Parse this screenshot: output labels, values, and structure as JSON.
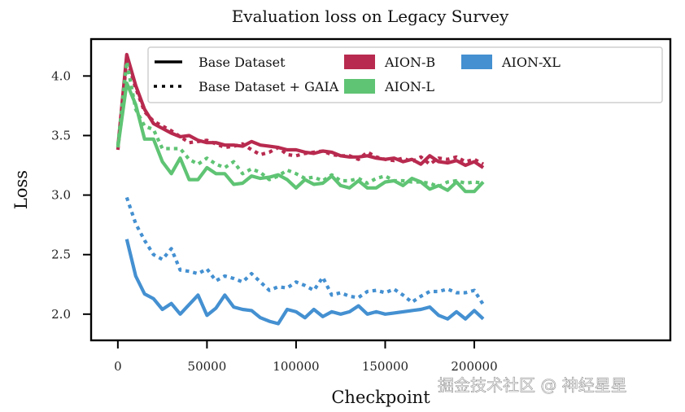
{
  "chart_data": {
    "type": "line",
    "title": "Evaluation loss on Legacy Survey",
    "xlabel": "Checkpoint",
    "ylabel": "Loss",
    "xlim": [
      -15000,
      310000
    ],
    "ylim": [
      1.78,
      4.31
    ],
    "xticks": [
      0,
      50000,
      100000,
      150000,
      200000
    ],
    "xtick_labels": [
      "0",
      "50000",
      "100000",
      "150000",
      "200000"
    ],
    "yticks": [
      2.0,
      2.5,
      3.0,
      3.5,
      4.0
    ],
    "ytick_labels": [
      "2.0",
      "2.5",
      "3.0",
      "3.5",
      "4.0"
    ],
    "grid": false,
    "legend": {
      "placement": "top-right",
      "style_entries": [
        {
          "label": "Base Dataset",
          "style": "solid"
        },
        {
          "label": "Base Dataset + GAIA",
          "style": "dotted"
        }
      ],
      "color_entries": [
        {
          "label": "AION-B",
          "color": "#b82a4f"
        },
        {
          "label": "AION-L",
          "color": "#5fc474"
        },
        {
          "label": "AION-XL",
          "color": "#4490d1"
        }
      ]
    },
    "x": [
      0,
      5000,
      10000,
      15000,
      20000,
      25000,
      30000,
      35000,
      40000,
      45000,
      50000,
      55000,
      60000,
      65000,
      70000,
      75000,
      80000,
      85000,
      90000,
      95000,
      100000,
      105000,
      110000,
      115000,
      120000,
      125000,
      130000,
      135000,
      140000,
      145000,
      150000,
      155000,
      160000,
      165000,
      170000,
      175000,
      180000,
      185000,
      190000,
      195000,
      200000,
      205000
    ],
    "series": [
      {
        "name": "AION-B",
        "dataset": "Base Dataset",
        "style": "solid",
        "color": "#b82a4f",
        "values": [
          3.4,
          4.18,
          3.92,
          3.72,
          3.6,
          3.56,
          3.52,
          3.49,
          3.5,
          3.46,
          3.44,
          3.44,
          3.42,
          3.42,
          3.41,
          3.45,
          3.42,
          3.41,
          3.4,
          3.38,
          3.38,
          3.36,
          3.35,
          3.37,
          3.36,
          3.33,
          3.32,
          3.32,
          3.33,
          3.31,
          3.3,
          3.31,
          3.28,
          3.3,
          3.26,
          3.33,
          3.28,
          3.27,
          3.29,
          3.25,
          3.28,
          3.23
        ]
      },
      {
        "name": "AION-B",
        "dataset": "Base Dataset + GAIA",
        "style": "dotted",
        "color": "#b82a4f",
        "values": [
          3.38,
          4.14,
          3.9,
          3.7,
          3.62,
          3.58,
          3.54,
          3.49,
          3.44,
          3.45,
          3.46,
          3.43,
          3.4,
          3.41,
          3.43,
          3.38,
          3.34,
          3.36,
          3.4,
          3.34,
          3.33,
          3.35,
          3.36,
          3.37,
          3.34,
          3.33,
          3.33,
          3.3,
          3.36,
          3.32,
          3.3,
          3.29,
          3.31,
          3.28,
          3.32,
          3.26,
          3.31,
          3.3,
          3.32,
          3.28,
          3.3,
          3.26
        ]
      },
      {
        "name": "AION-L",
        "dataset": "Base Dataset",
        "style": "solid",
        "color": "#5fc474",
        "values": [
          3.4,
          3.94,
          3.76,
          3.47,
          3.47,
          3.28,
          3.18,
          3.31,
          3.13,
          3.13,
          3.23,
          3.18,
          3.18,
          3.09,
          3.1,
          3.16,
          3.14,
          3.15,
          3.17,
          3.13,
          3.06,
          3.13,
          3.09,
          3.1,
          3.16,
          3.08,
          3.06,
          3.12,
          3.06,
          3.06,
          3.11,
          3.12,
          3.08,
          3.14,
          3.11,
          3.05,
          3.08,
          3.04,
          3.11,
          3.03,
          3.03,
          3.11
        ]
      },
      {
        "name": "AION-L",
        "dataset": "Base Dataset + GAIA",
        "style": "dotted",
        "color": "#5fc474",
        "values": [
          3.42,
          4.12,
          3.72,
          3.58,
          3.55,
          3.39,
          3.39,
          3.39,
          3.3,
          3.26,
          3.31,
          3.26,
          3.23,
          3.28,
          3.18,
          3.22,
          3.19,
          3.13,
          3.16,
          3.21,
          3.18,
          3.14,
          3.15,
          3.12,
          3.17,
          3.12,
          3.12,
          3.14,
          3.1,
          3.14,
          3.16,
          3.12,
          3.12,
          3.11,
          3.11,
          3.1,
          3.07,
          3.11,
          3.12,
          3.1,
          3.11,
          3.1
        ]
      },
      {
        "name": "AION-XL",
        "dataset": "Base Dataset",
        "style": "solid",
        "color": "#4490d1",
        "values": [
          null,
          2.63,
          2.32,
          2.17,
          2.13,
          2.04,
          2.09,
          2.0,
          2.08,
          2.16,
          1.99,
          2.05,
          2.16,
          2.06,
          2.04,
          2.03,
          1.97,
          1.94,
          1.92,
          2.04,
          2.02,
          1.97,
          2.04,
          1.98,
          2.02,
          2.0,
          2.02,
          2.07,
          2.0,
          2.02,
          2.0,
          2.01,
          2.02,
          2.03,
          2.04,
          2.06,
          1.99,
          1.96,
          2.02,
          1.96,
          2.03,
          1.96
        ]
      },
      {
        "name": "AION-XL",
        "dataset": "Base Dataset + GAIA",
        "style": "dotted",
        "color": "#4490d1",
        "values": [
          null,
          2.98,
          2.76,
          2.62,
          2.5,
          2.46,
          2.55,
          2.37,
          2.36,
          2.34,
          2.38,
          2.28,
          2.32,
          2.3,
          2.27,
          2.34,
          2.27,
          2.2,
          2.23,
          2.22,
          2.27,
          2.24,
          2.2,
          2.31,
          2.16,
          2.18,
          2.15,
          2.14,
          2.19,
          2.2,
          2.18,
          2.21,
          2.16,
          2.1,
          2.15,
          2.19,
          2.19,
          2.21,
          2.18,
          2.18,
          2.2,
          2.08
        ]
      }
    ]
  },
  "watermark": "掘金技术社区 @ 神经星星"
}
